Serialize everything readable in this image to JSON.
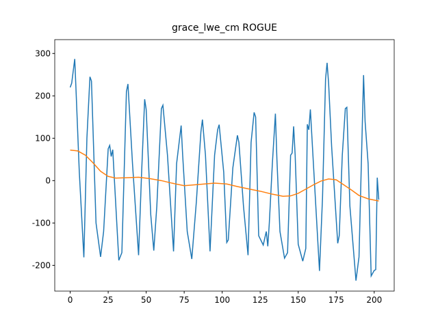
{
  "chart_data": {
    "type": "line",
    "title": "grace_lwe_cm ROGUE",
    "xlim": [
      -10.15,
      213.15
    ],
    "ylim": [
      -260.7,
      332.7
    ],
    "xticks": [
      0,
      25,
      50,
      75,
      100,
      125,
      150,
      175,
      200
    ],
    "yticks": [
      -200,
      -100,
      0,
      100,
      200,
      300
    ],
    "series": [
      {
        "color": "#1f77b4",
        "x": [
          0,
          1,
          3,
          4,
          6,
          9,
          11,
          13,
          14,
          17,
          20,
          22,
          25,
          26,
          27,
          28,
          32,
          34,
          37,
          38,
          41,
          45,
          47,
          49,
          50,
          53,
          55,
          57,
          60,
          61,
          64,
          68,
          70,
          73,
          74,
          77,
          80,
          83,
          86,
          87,
          89,
          92,
          95,
          97,
          98,
          101,
          103,
          104,
          107,
          110,
          111,
          114,
          117,
          119,
          121,
          122,
          124,
          127,
          129,
          130,
          131,
          133,
          135,
          136,
          138,
          141,
          143,
          145,
          146,
          147,
          148,
          150,
          153,
          155,
          156,
          157,
          158,
          160,
          164,
          166,
          168,
          169,
          170,
          172,
          176,
          177,
          179,
          181,
          182,
          184,
          188,
          190,
          193,
          194,
          196,
          198,
          200,
          201,
          202,
          203
        ],
        "values": [
          220,
          230,
          287,
          200,
          20,
          -181,
          100,
          245,
          235,
          -100,
          -180,
          -120,
          75,
          83,
          57,
          73,
          -188,
          -170,
          210,
          228,
          40,
          -176,
          20,
          192,
          168,
          -80,
          -165,
          -60,
          170,
          178,
          60,
          -167,
          40,
          130,
          60,
          -120,
          -185,
          -50,
          115,
          144,
          60,
          -167,
          60,
          120,
          132,
          20,
          -146,
          -140,
          30,
          107,
          90,
          -60,
          -176,
          90,
          161,
          150,
          -130,
          -152,
          -120,
          -155,
          -100,
          40,
          158,
          50,
          -120,
          -183,
          -170,
          60,
          65,
          128,
          60,
          -150,
          -190,
          -160,
          133,
          120,
          168,
          40,
          -213,
          -40,
          240,
          278,
          230,
          80,
          -148,
          -130,
          60,
          170,
          173,
          -60,
          -236,
          -180,
          249,
          140,
          40,
          -225,
          -212,
          -210,
          7,
          -45
        ]
      },
      {
        "color": "#ff7f0e",
        "x": [
          0,
          5,
          10,
          15,
          20,
          25,
          30,
          38,
          45,
          52,
          60,
          67,
          75,
          85,
          95,
          103,
          110,
          118,
          125,
          133,
          140,
          145,
          150,
          155,
          160,
          165,
          170,
          175,
          180,
          185,
          190,
          196,
          203
        ],
        "values": [
          72,
          70,
          60,
          42,
          22,
          10,
          6,
          7,
          8,
          5,
          0,
          -6,
          -12,
          -9,
          -6,
          -8,
          -14,
          -20,
          -25,
          -32,
          -37,
          -36,
          -30,
          -20,
          -10,
          -1,
          4,
          2,
          -10,
          -22,
          -35,
          -43,
          -48
        ]
      }
    ]
  }
}
